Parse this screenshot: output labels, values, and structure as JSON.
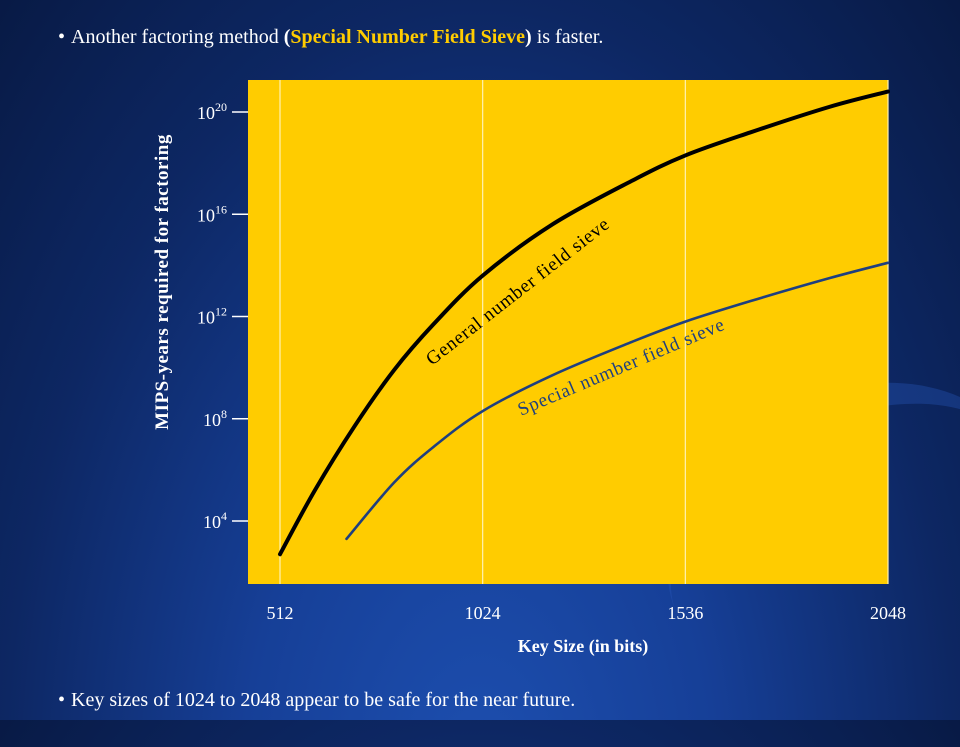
{
  "bullets": {
    "top": {
      "prefix": "Another factoring method ",
      "open_paren": "(",
      "highlight": "Special Number Field Sieve",
      "close_paren": ")",
      "suffix": " is faster."
    },
    "bottom": {
      "text": "Key sizes of 1024 to 2048 appear to be safe for the near future."
    }
  },
  "colors": {
    "plot_background": "#ffcc00",
    "general_line": "#000000",
    "special_line": "#1f3f7f",
    "highlight_text": "#ffcc00",
    "grid": "#fff2b3"
  },
  "chart_data": {
    "type": "line",
    "xlabel": "Key Size (in bits)",
    "ylabel": "MIPS-years required for factoring",
    "x_ticks": [
      512,
      1024,
      1536,
      2048
    ],
    "x_tick_labels": [
      "512",
      "1024",
      "1536",
      "2048"
    ],
    "xlim": [
      512,
      2048
    ],
    "y_scale": "log10",
    "y_ticks": [
      {
        "base": "10",
        "exp": "4",
        "value": 10000.0
      },
      {
        "base": "10",
        "exp": "8",
        "value": 100000000.0
      },
      {
        "base": "10",
        "exp": "12",
        "value": 1000000000000.0
      },
      {
        "base": "10",
        "exp": "16",
        "value": 1e+16
      },
      {
        "base": "10",
        "exp": "20",
        "value": 1e+20
      }
    ],
    "ylim_log10": [
      1.5,
      21.3
    ],
    "grid": "vertical at x ticks",
    "series": [
      {
        "name": "General number field sieve",
        "x": [
          512,
          600,
          700,
          800,
          900,
          1024,
          1200,
          1400,
          1536,
          1700,
          1900,
          2048
        ],
        "y_log10": [
          2.7,
          5.2,
          7.7,
          9.9,
          11.7,
          13.6,
          15.6,
          17.3,
          18.3,
          19.2,
          20.2,
          20.8
        ]
      },
      {
        "name": "Special number field sieve",
        "x": [
          680,
          800,
          900,
          1024,
          1200,
          1400,
          1536,
          1700,
          1900,
          2048
        ],
        "y_log10": [
          3.3,
          5.5,
          6.9,
          8.3,
          9.7,
          11.0,
          11.8,
          12.6,
          13.5,
          14.1
        ]
      }
    ]
  }
}
